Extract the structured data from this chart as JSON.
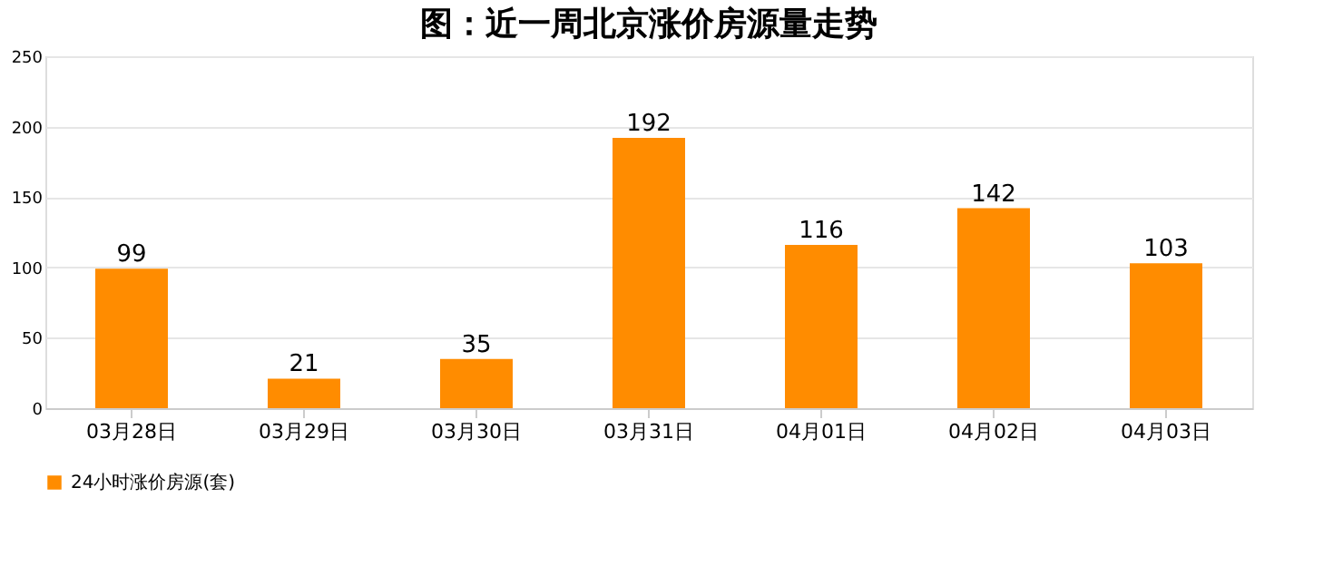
{
  "chart_data": {
    "type": "bar",
    "title": "图：近一周北京涨价房源量走势",
    "categories": [
      "03月28日",
      "03月29日",
      "03月30日",
      "03月31日",
      "04月01日",
      "04月02日",
      "04月03日"
    ],
    "series": [
      {
        "name": "24小时涨价房源(套)",
        "color": "#ff8c00",
        "values": [
          99,
          21,
          35,
          192,
          116,
          142,
          103
        ]
      }
    ],
    "ylim": [
      0,
      250
    ],
    "yticks": [
      0,
      50,
      100,
      150,
      200,
      250
    ],
    "grid": "y",
    "legend": "bottom",
    "data_labels": true
  }
}
